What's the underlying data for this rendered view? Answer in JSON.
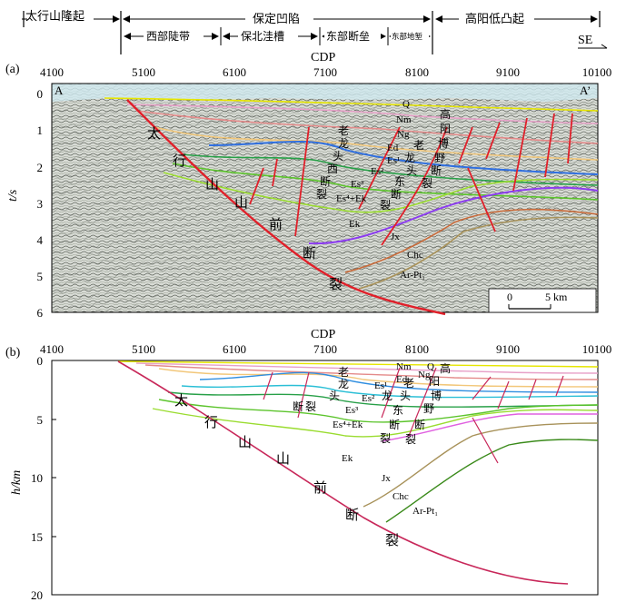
{
  "header": {
    "segments": [
      "太行山隆起",
      "保定凹陷",
      "高阳低凸起"
    ],
    "subsegments": [
      "西部陡带",
      "保北洼槽",
      "东部断垒",
      "东部地堑"
    ],
    "direction": "SE"
  },
  "panel_a": {
    "label": "(a)",
    "cdp_title": "CDP",
    "cdp_ticks": [
      "4100",
      "5100",
      "6100",
      "7100",
      "8100",
      "9100",
      "10100"
    ],
    "y_label": "t/s",
    "y_ticks": [
      "0",
      "1",
      "2",
      "3",
      "4",
      "5",
      "6"
    ],
    "corner_left": "A",
    "corner_right": "A’",
    "scale_bar": {
      "start": "0",
      "end": "5 km"
    },
    "strata": [
      "Q",
      "Nm",
      "Ng",
      "Ed",
      "Es¹",
      "Es²",
      "Es³",
      "Es⁴+Ek",
      "Ek",
      "Jx",
      "Chc",
      "Ar-Pt₁"
    ],
    "fault_main": [
      "太",
      "行",
      "山",
      "山",
      "前",
      "断",
      "裂"
    ],
    "fault_laolongtou": [
      "老",
      "龙",
      "头",
      "西",
      "断",
      "裂"
    ],
    "fault_east": [
      "老",
      "龙",
      "头",
      "东",
      "断",
      "裂"
    ],
    "fault_gaoyangboye": [
      "高",
      "阳",
      "博",
      "野",
      "断",
      "裂"
    ]
  },
  "panel_b": {
    "label": "(b)",
    "cdp_title": "CDP",
    "cdp_ticks": [
      "4100",
      "5100",
      "6100",
      "7100",
      "8100",
      "9100",
      "10100"
    ],
    "y_label": "h/km",
    "y_ticks": [
      "0",
      "5",
      "10",
      "15",
      "20"
    ],
    "strata": [
      "Q",
      "Nm",
      "Ng",
      "Ed",
      "Es¹",
      "Es²",
      "Es³",
      "Es⁴+Ek",
      "Ek",
      "Jx",
      "Chc",
      "Ar-Pt₁"
    ],
    "fault_main": [
      "太",
      "行",
      "山",
      "山",
      "前",
      "断",
      "裂"
    ],
    "fault_laolongtou": [
      "老",
      "龙",
      "头",
      "断",
      "裂"
    ],
    "fault_east": [
      "老",
      "龙",
      "头",
      "东",
      "断",
      "裂"
    ],
    "fault_gaoyangboye": [
      "高",
      "阳",
      "博",
      "野",
      "断",
      "裂"
    ]
  }
}
